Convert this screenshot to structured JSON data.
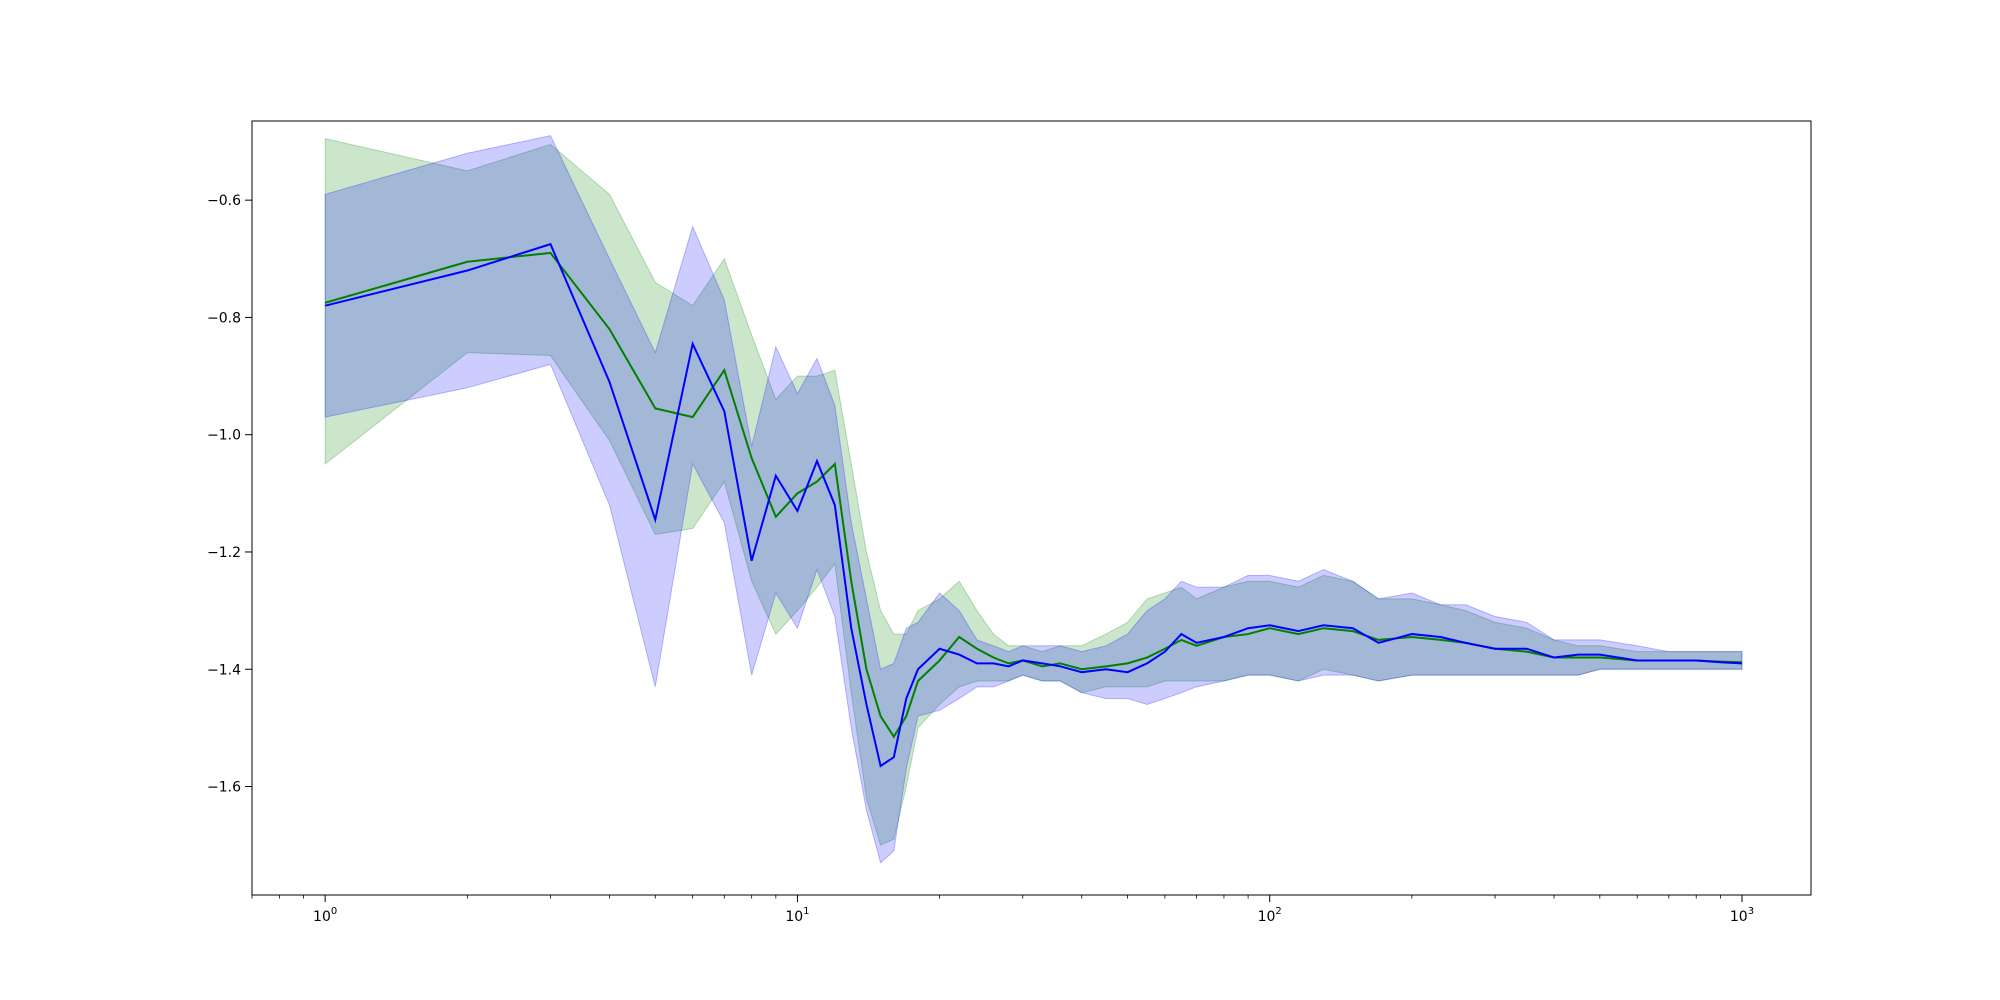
{
  "chart_data": {
    "type": "line",
    "title": "",
    "xlabel": "",
    "ylabel": "",
    "x_scale": "log",
    "xlim": [
      0.7,
      1400
    ],
    "ylim": [
      -1.785,
      -0.465
    ],
    "x_ticks": [
      {
        "value": 1,
        "label": "10",
        "exp": "0"
      },
      {
        "value": 10,
        "label": "10",
        "exp": "1"
      },
      {
        "value": 100,
        "label": "10",
        "exp": "2"
      },
      {
        "value": 1000,
        "label": "10",
        "exp": "3"
      }
    ],
    "y_ticks": [
      {
        "value": -0.6,
        "label": "−0.6"
      },
      {
        "value": -0.8,
        "label": "−0.8"
      },
      {
        "value": -1.0,
        "label": "−1.0"
      },
      {
        "value": -1.2,
        "label": "−1.2"
      },
      {
        "value": -1.4,
        "label": "−1.4"
      },
      {
        "value": -1.6,
        "label": "−1.6"
      }
    ],
    "grid": false,
    "legend": "none",
    "series": [
      {
        "color": "#008000",
        "band_color": "#008000",
        "band_opacity": 0.2,
        "x": [
          1,
          2,
          3,
          4,
          5,
          6,
          7,
          8,
          9,
          10,
          11,
          12,
          13,
          14,
          15,
          16,
          17,
          18,
          20,
          22,
          24,
          26,
          28,
          30,
          33,
          36,
          40,
          45,
          50,
          55,
          60,
          65,
          70,
          80,
          90,
          100,
          115,
          130,
          150,
          170,
          200,
          230,
          260,
          300,
          350,
          400,
          450,
          500,
          600,
          700,
          800,
          900,
          1000
        ],
        "mean": [
          -0.775,
          -0.705,
          -0.69,
          -0.82,
          -0.955,
          -0.97,
          -0.89,
          -1.04,
          -1.14,
          -1.1,
          -1.08,
          -1.05,
          -1.25,
          -1.4,
          -1.48,
          -1.515,
          -1.48,
          -1.42,
          -1.385,
          -1.345,
          -1.365,
          -1.38,
          -1.39,
          -1.385,
          -1.395,
          -1.39,
          -1.4,
          -1.395,
          -1.39,
          -1.38,
          -1.365,
          -1.35,
          -1.36,
          -1.345,
          -1.34,
          -1.33,
          -1.34,
          -1.33,
          -1.335,
          -1.35,
          -1.345,
          -1.35,
          -1.355,
          -1.365,
          -1.37,
          -1.38,
          -1.38,
          -1.38,
          -1.385,
          -1.385,
          -1.385,
          -1.387,
          -1.388
        ],
        "lower": [
          -1.05,
          -0.86,
          -0.865,
          -1.01,
          -1.17,
          -1.16,
          -1.08,
          -1.25,
          -1.34,
          -1.3,
          -1.26,
          -1.22,
          -1.44,
          -1.62,
          -1.7,
          -1.69,
          -1.6,
          -1.5,
          -1.46,
          -1.43,
          -1.42,
          -1.42,
          -1.42,
          -1.41,
          -1.42,
          -1.42,
          -1.44,
          -1.43,
          -1.43,
          -1.43,
          -1.42,
          -1.42,
          -1.42,
          -1.42,
          -1.41,
          -1.41,
          -1.42,
          -1.4,
          -1.41,
          -1.42,
          -1.41,
          -1.41,
          -1.41,
          -1.41,
          -1.41,
          -1.41,
          -1.41,
          -1.4,
          -1.4,
          -1.4,
          -1.4,
          -1.4,
          -1.4
        ],
        "upper": [
          -0.495,
          -0.55,
          -0.505,
          -0.59,
          -0.74,
          -0.78,
          -0.7,
          -0.83,
          -0.94,
          -0.9,
          -0.9,
          -0.89,
          -1.05,
          -1.2,
          -1.3,
          -1.34,
          -1.34,
          -1.3,
          -1.28,
          -1.25,
          -1.3,
          -1.34,
          -1.36,
          -1.36,
          -1.37,
          -1.36,
          -1.36,
          -1.34,
          -1.32,
          -1.28,
          -1.27,
          -1.26,
          -1.28,
          -1.26,
          -1.25,
          -1.25,
          -1.26,
          -1.24,
          -1.25,
          -1.28,
          -1.28,
          -1.29,
          -1.3,
          -1.32,
          -1.33,
          -1.35,
          -1.36,
          -1.36,
          -1.37,
          -1.37,
          -1.37,
          -1.37,
          -1.37
        ]
      },
      {
        "color": "#0000ff",
        "band_color": "#0000ff",
        "band_opacity": 0.2,
        "x": [
          1,
          2,
          3,
          4,
          5,
          6,
          7,
          8,
          9,
          10,
          11,
          12,
          13,
          14,
          15,
          16,
          17,
          18,
          20,
          22,
          24,
          26,
          28,
          30,
          33,
          36,
          40,
          45,
          50,
          55,
          60,
          65,
          70,
          80,
          90,
          100,
          115,
          130,
          150,
          170,
          200,
          230,
          260,
          300,
          350,
          400,
          450,
          500,
          600,
          700,
          800,
          900,
          1000
        ],
        "mean": [
          -0.78,
          -0.72,
          -0.675,
          -0.91,
          -1.145,
          -0.845,
          -0.96,
          -1.215,
          -1.07,
          -1.13,
          -1.045,
          -1.12,
          -1.33,
          -1.46,
          -1.565,
          -1.55,
          -1.45,
          -1.4,
          -1.365,
          -1.375,
          -1.39,
          -1.39,
          -1.395,
          -1.385,
          -1.39,
          -1.395,
          -1.405,
          -1.4,
          -1.405,
          -1.39,
          -1.37,
          -1.34,
          -1.355,
          -1.345,
          -1.33,
          -1.325,
          -1.335,
          -1.325,
          -1.33,
          -1.355,
          -1.34,
          -1.345,
          -1.355,
          -1.365,
          -1.365,
          -1.38,
          -1.375,
          -1.375,
          -1.385,
          -1.385,
          -1.385,
          -1.388,
          -1.39
        ],
        "lower": [
          -0.97,
          -0.92,
          -0.88,
          -1.12,
          -1.43,
          -1.05,
          -1.15,
          -1.41,
          -1.27,
          -1.33,
          -1.23,
          -1.31,
          -1.5,
          -1.64,
          -1.73,
          -1.71,
          -1.57,
          -1.48,
          -1.47,
          -1.45,
          -1.43,
          -1.43,
          -1.42,
          -1.41,
          -1.42,
          -1.42,
          -1.44,
          -1.45,
          -1.45,
          -1.46,
          -1.45,
          -1.44,
          -1.43,
          -1.42,
          -1.41,
          -1.41,
          -1.42,
          -1.41,
          -1.41,
          -1.42,
          -1.41,
          -1.41,
          -1.41,
          -1.41,
          -1.41,
          -1.41,
          -1.41,
          -1.4,
          -1.4,
          -1.4,
          -1.4,
          -1.4,
          -1.4
        ],
        "upper": [
          -0.59,
          -0.52,
          -0.49,
          -0.7,
          -0.86,
          -0.645,
          -0.77,
          -1.02,
          -0.85,
          -0.93,
          -0.87,
          -0.95,
          -1.15,
          -1.28,
          -1.4,
          -1.39,
          -1.33,
          -1.32,
          -1.27,
          -1.3,
          -1.35,
          -1.36,
          -1.37,
          -1.36,
          -1.36,
          -1.36,
          -1.37,
          -1.36,
          -1.34,
          -1.3,
          -1.28,
          -1.25,
          -1.26,
          -1.26,
          -1.24,
          -1.24,
          -1.25,
          -1.23,
          -1.25,
          -1.28,
          -1.27,
          -1.29,
          -1.29,
          -1.31,
          -1.32,
          -1.35,
          -1.35,
          -1.35,
          -1.36,
          -1.37,
          -1.37,
          -1.37,
          -1.37
        ]
      }
    ]
  }
}
